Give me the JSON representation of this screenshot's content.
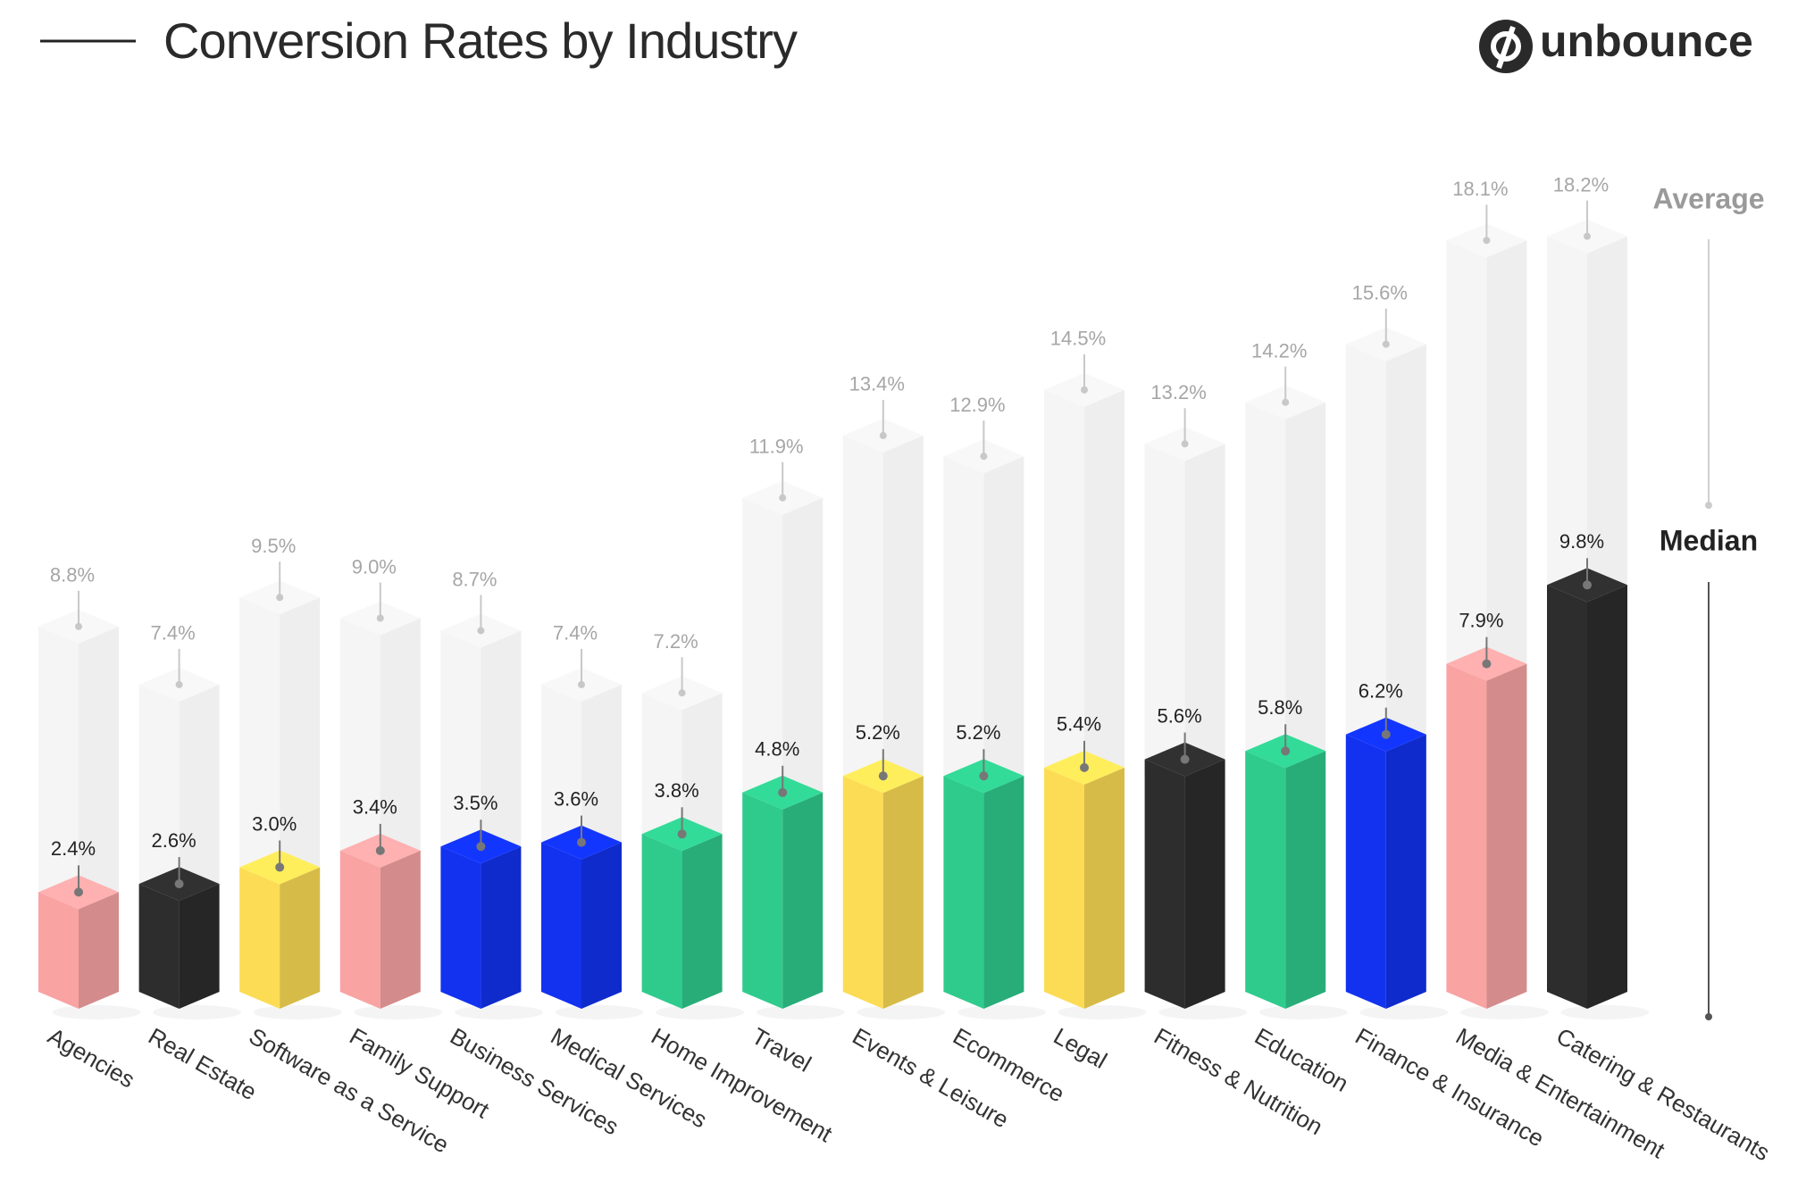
{
  "brand": "unbounce",
  "chart_data": {
    "type": "bar",
    "title": "Conversion Rates by Industry",
    "categories": [
      "Agencies",
      "Real Estate",
      "Software as a Service",
      "Family Support",
      "Business Services",
      "Medical Services",
      "Home Improvement",
      "Travel",
      "Events & Leisure",
      "Ecommerce",
      "Legal",
      "Fitness & Nutrition",
      "Education",
      "Finance & Insurance",
      "Media & Entertainment",
      "Catering & Restaurants"
    ],
    "series": [
      {
        "name": "Average",
        "color": "#f2f2f2",
        "values": [
          8.8,
          7.4,
          9.5,
          9.0,
          8.7,
          7.4,
          7.2,
          11.9,
          13.4,
          12.9,
          14.5,
          13.2,
          14.2,
          15.6,
          18.1,
          18.2
        ],
        "value_labels": [
          "8.8%",
          "7.4%",
          "9.5%",
          "9.0%",
          "8.7%",
          "7.4%",
          "7.2%",
          "11.9%",
          "13.4%",
          "12.9%",
          "14.5%",
          "13.2%",
          "14.2%",
          "15.6%",
          "18.1%",
          "18.2%"
        ]
      },
      {
        "name": "Median",
        "colors": [
          "#f9a3a3",
          "#2d2d2d",
          "#fddc55",
          "#f9a3a3",
          "#1232f0",
          "#1232f0",
          "#2fcb8d",
          "#2fcb8d",
          "#fddc55",
          "#2fcb8d",
          "#fddc55",
          "#2d2d2d",
          "#2fcb8d",
          "#1232f0",
          "#f9a3a3",
          "#2d2d2d"
        ],
        "values": [
          2.4,
          2.6,
          3.0,
          3.4,
          3.5,
          3.6,
          3.8,
          4.8,
          5.2,
          5.2,
          5.4,
          5.6,
          5.8,
          6.2,
          7.9,
          9.8
        ],
        "value_labels": [
          "2.4%",
          "2.6%",
          "3.0%",
          "3.4%",
          "3.5%",
          "3.6%",
          "3.8%",
          "4.8%",
          "5.2%",
          "5.2%",
          "5.4%",
          "5.6%",
          "5.8%",
          "6.2%",
          "7.9%",
          "9.8%"
        ]
      }
    ]
  }
}
